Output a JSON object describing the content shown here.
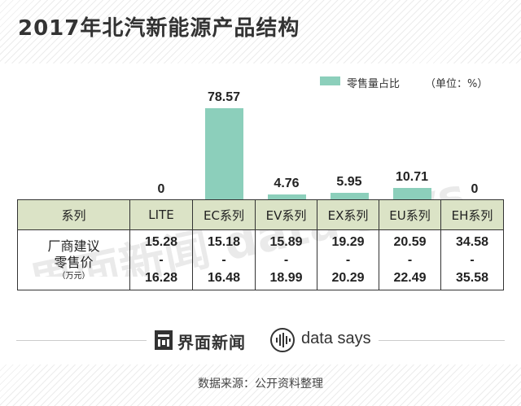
{
  "title": "2017年北汽新能源产品结构",
  "legend": {
    "label": "零售量占比",
    "unit": "（单位：%）"
  },
  "colors": {
    "bar": "#8ccfbb",
    "header_bg": "#dbe3c6",
    "text": "#333333"
  },
  "chart_data": {
    "type": "bar",
    "title": "2017年北汽新能源产品结构",
    "categories": [
      "LITE",
      "EC系列",
      "EV系列",
      "EX系列",
      "EU系列",
      "EH系列"
    ],
    "series": [
      {
        "name": "零售量占比",
        "values": [
          0,
          78.57,
          4.76,
          5.95,
          10.71,
          0
        ]
      }
    ],
    "value_labels": [
      "0",
      "78.57",
      "4.76",
      "5.95",
      "10.71",
      "0"
    ],
    "ylabel": "单位：%",
    "ylim": [
      0,
      100
    ],
    "legend_position": "top-right",
    "grid": false
  },
  "table": {
    "header_label": "系列",
    "row_label_main": [
      "厂商建议",
      "零售价"
    ],
    "row_label_sub": "（万元）",
    "columns": [
      "LITE",
      "EC系列",
      "EV系列",
      "EX系列",
      "EU系列",
      "EH系列"
    ],
    "prices": [
      {
        "low": "15.28",
        "sep": "-",
        "high": "16.28"
      },
      {
        "low": "15.18",
        "sep": "-",
        "high": "16.48"
      },
      {
        "low": "15.89",
        "sep": "-",
        "high": "18.99"
      },
      {
        "low": "19.29",
        "sep": "-",
        "high": "20.29"
      },
      {
        "low": "20.59",
        "sep": "-",
        "high": "22.49"
      },
      {
        "low": "34.58",
        "sep": "-",
        "high": "35.58"
      }
    ]
  },
  "brand": {
    "name_cn": "界面新闻",
    "name_en": "data says"
  },
  "watermark": {
    "text": "界面新闻 data says"
  },
  "source": "数据来源：公开资料整理"
}
